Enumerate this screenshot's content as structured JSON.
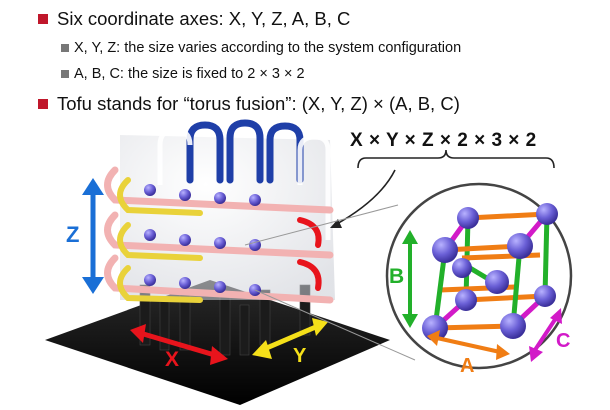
{
  "bullets": {
    "b1": "Six coordinate axes: X, Y, Z, A, B, C",
    "b1a": "X, Y, Z: the size varies according to the system configuration",
    "b1b": "A, B, C: the size is fixed to 2 × 3 × 2",
    "b2": "Tofu stands for “torus fusion”: (X, Y, Z) × (A, B, C)"
  },
  "figure": {
    "formula": "X × Y × Z × 2 × 3 × 2",
    "axis_labels": {
      "x": "X",
      "y": "Y",
      "z": "Z",
      "a": "A",
      "b": "B",
      "c": "C"
    }
  },
  "colors": {
    "bullet_square": "#c0172b",
    "sub_bullet_square": "#777777",
    "axis_red": "#e8141c",
    "axis_yellow": "#f5e019",
    "axis_blue": "#1a6fd6",
    "axis_orange": "#f07d14",
    "axis_green": "#22b02a",
    "axis_magenta": "#d21ac8",
    "node_purple": "#6a5fd6"
  },
  "icons": [
    "bullet-square",
    "torus-network-illustration",
    "unit-cell-zoom-circle"
  ]
}
